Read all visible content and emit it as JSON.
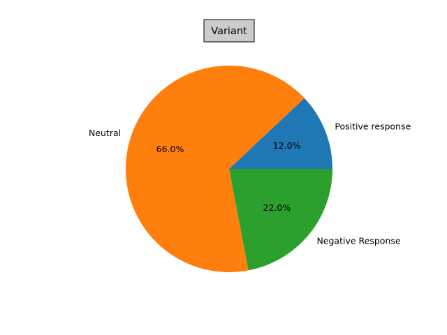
{
  "chart_data": {
    "type": "pie",
    "title": "Variant",
    "slices": [
      {
        "label": "Positive response",
        "value": 12.0,
        "pct_label": "12.0%",
        "color": "#1f77b4"
      },
      {
        "label": "Neutral",
        "value": 66.0,
        "pct_label": "66.0%",
        "color": "#ff7f0e"
      },
      {
        "label": "Negative Response",
        "value": 22.0,
        "pct_label": "22.0%",
        "color": "#2ca02c"
      }
    ]
  }
}
